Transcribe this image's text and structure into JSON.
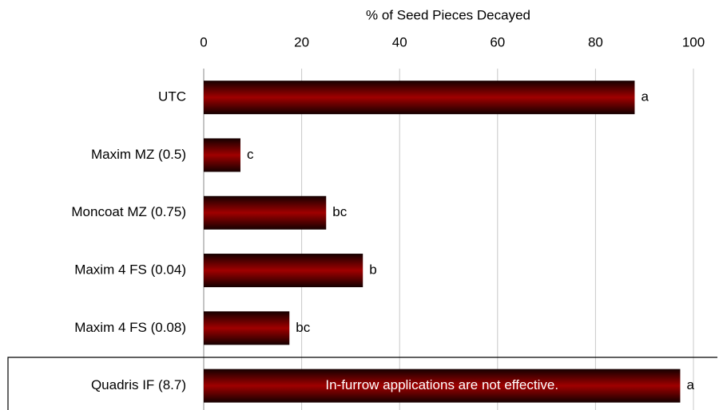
{
  "chart_data": {
    "type": "bar",
    "orientation": "horizontal",
    "x_axis_label": "% of Seed Pieces Decayed",
    "categories": [
      "UTC",
      "Maxim MZ (0.5)",
      "Moncoat MZ (0.75)",
      "Maxim 4 FS (0.04)",
      "Maxim 4 FS (0.08)",
      "Quadris IF  (8.7)"
    ],
    "values": [
      88,
      7.5,
      25,
      32.5,
      17.5,
      97.3
    ],
    "letters": [
      "a",
      "c",
      "bc",
      "b",
      "bc",
      "a"
    ],
    "annotation": "In-furrow applications are not effective.",
    "color": "#990000",
    "xlim": [
      0,
      100
    ],
    "xticks": [
      0,
      20,
      40,
      60,
      80,
      100
    ],
    "grid": true
  }
}
